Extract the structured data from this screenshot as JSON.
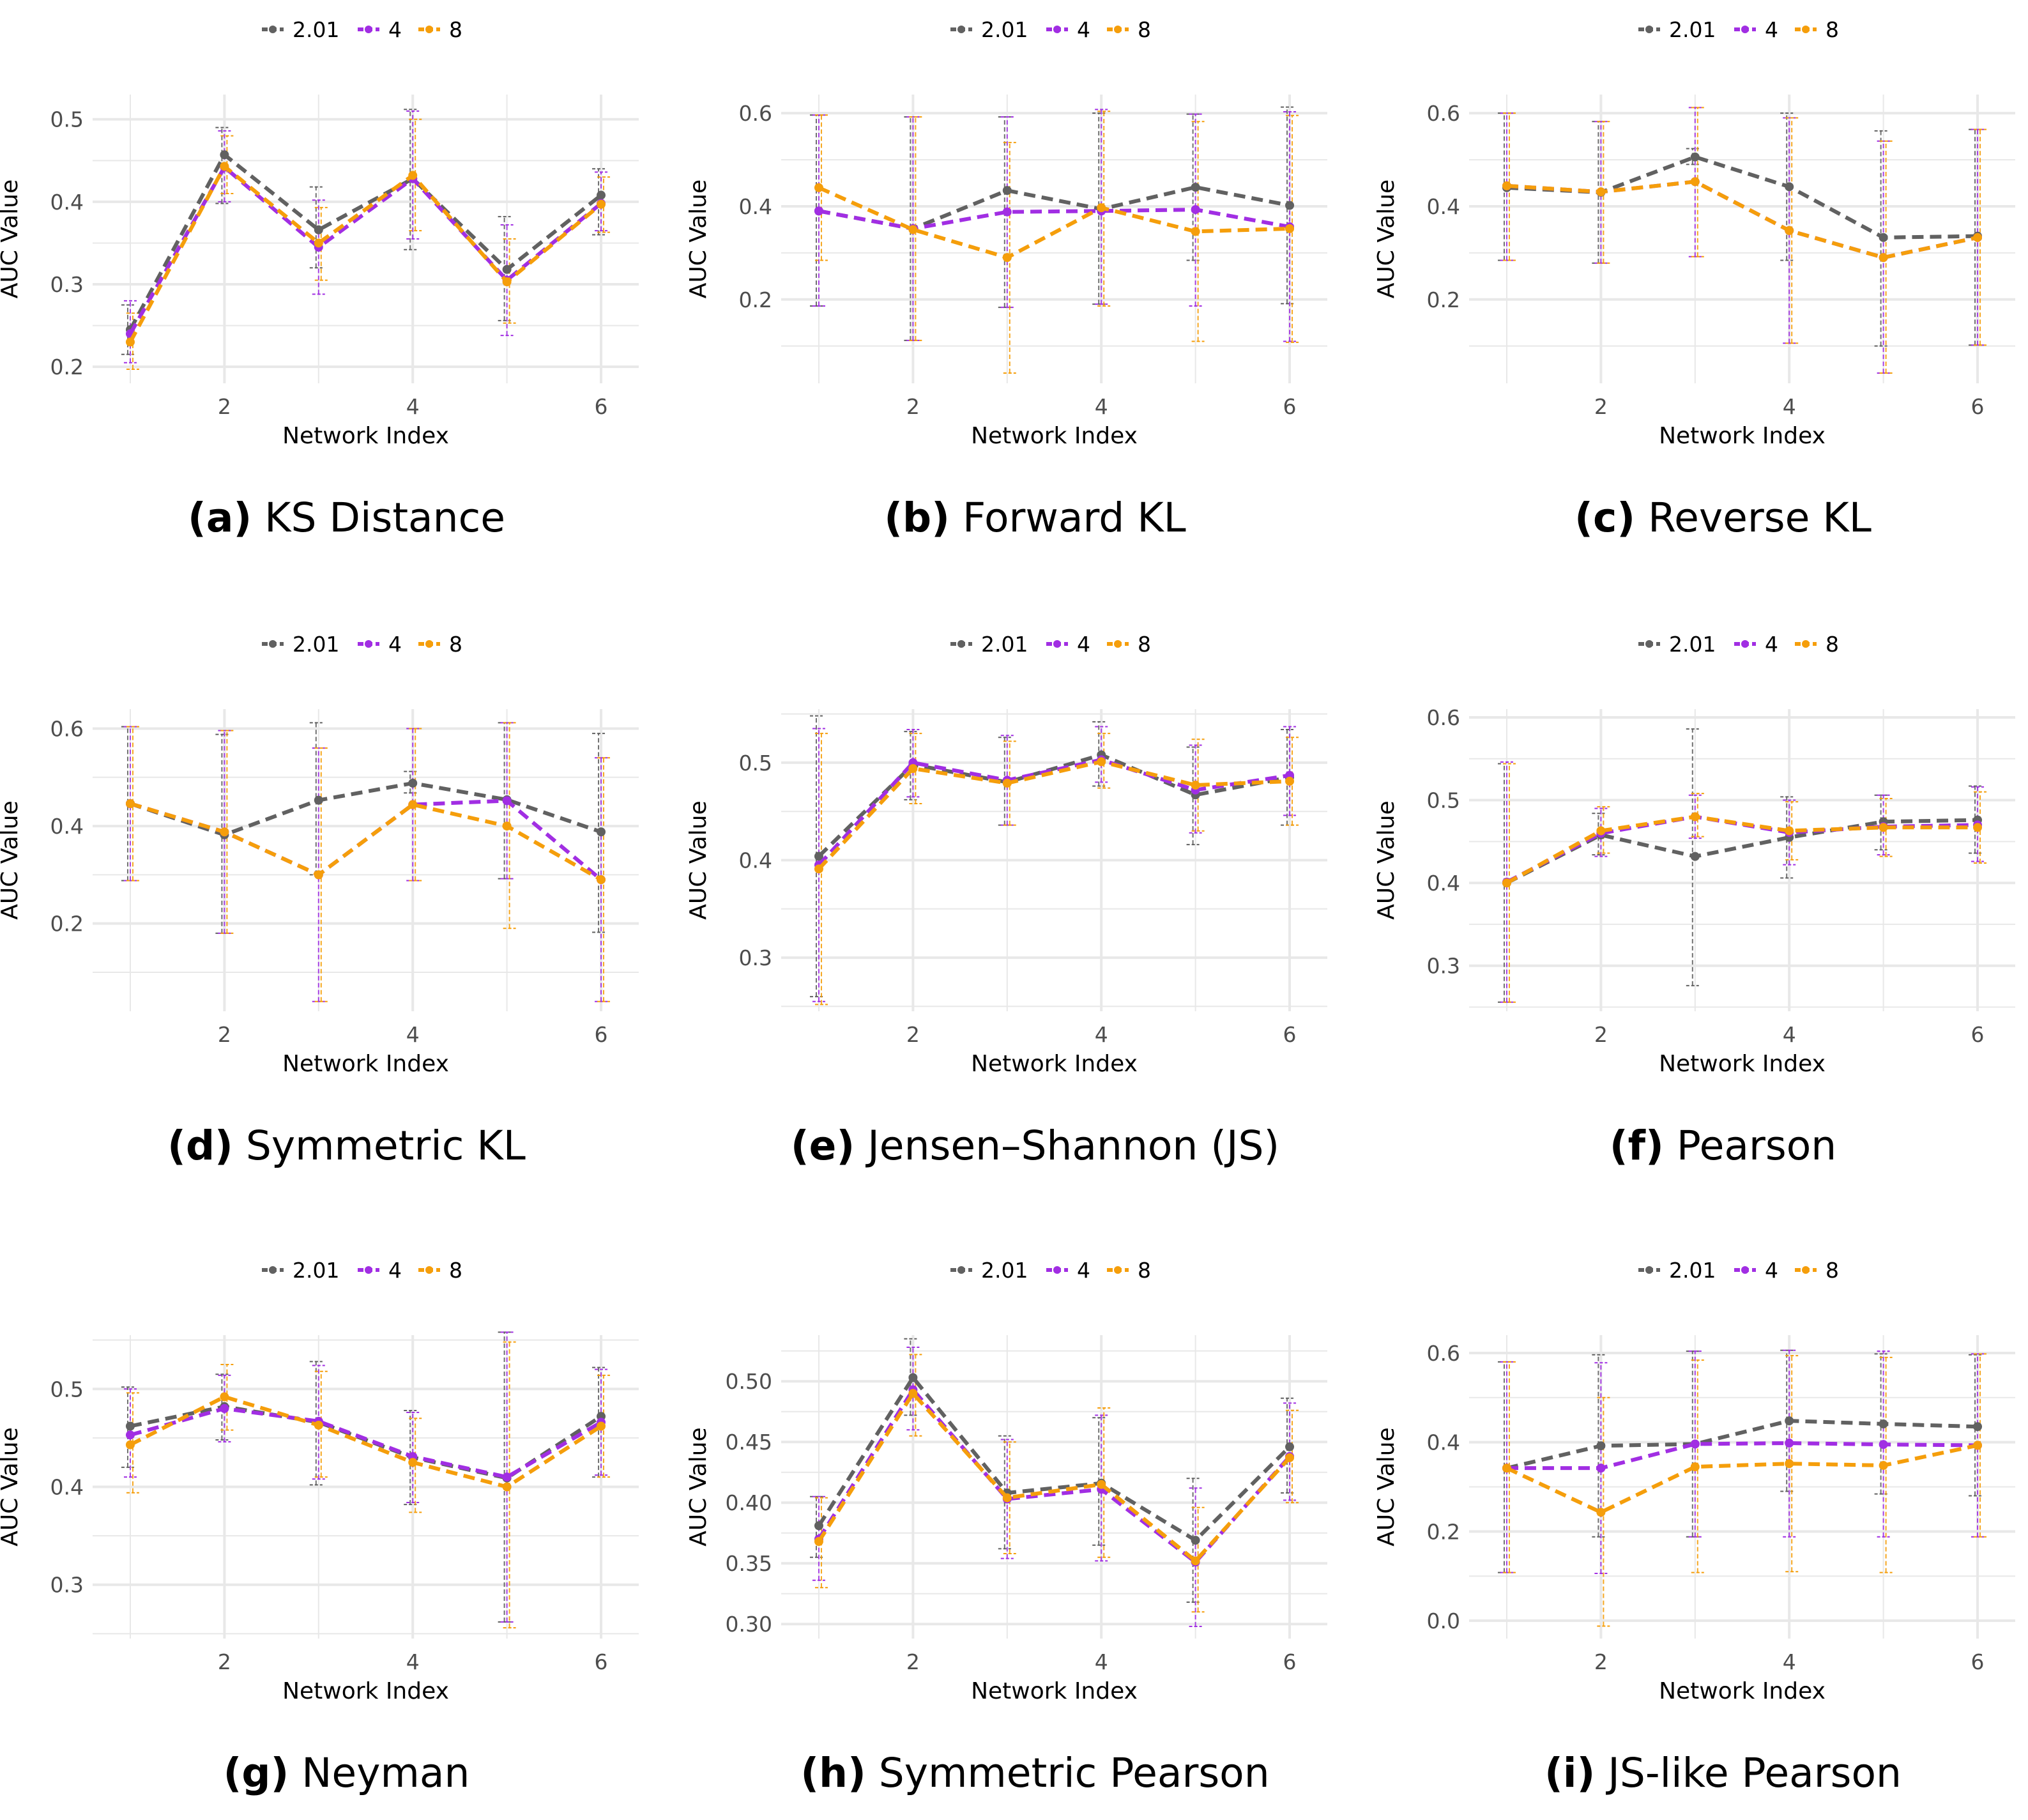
{
  "figure": {
    "legend_labels": [
      "2.01",
      "4",
      "8"
    ],
    "colors": {
      "2.01": "#616161",
      "4": "#a12ee3",
      "8": "#f59e0b"
    },
    "grid_color": "#e8e8e8",
    "axis_text_color": "#4d4d4d"
  },
  "chart_data": [
    {
      "id": "a",
      "type": "line",
      "letter": "(a)",
      "caption": "KS Distance",
      "xlabel": "Network Index",
      "ylabel": "AUC Value",
      "x": [
        1,
        2,
        3,
        4,
        5,
        6
      ],
      "xticks": [
        2,
        4,
        6
      ],
      "xticklabels": [
        "2",
        "4",
        "6"
      ],
      "ylim": [
        0.18,
        0.53
      ],
      "yticks": [
        0.2,
        0.3,
        0.4,
        0.5
      ],
      "yticklabels": [
        "0.2",
        "0.3",
        "0.4",
        "0.5"
      ],
      "legend": "top",
      "series": [
        {
          "name": "2.01",
          "values": [
            0.245,
            0.457,
            0.366,
            0.428,
            0.318,
            0.408
          ],
          "lower": [
            0.215,
            0.398,
            0.32,
            0.342,
            0.256,
            0.36
          ],
          "upper": [
            0.275,
            0.49,
            0.418,
            0.512,
            0.382,
            0.44
          ]
        },
        {
          "name": "4",
          "values": [
            0.24,
            0.442,
            0.345,
            0.428,
            0.305,
            0.398
          ],
          "lower": [
            0.205,
            0.4,
            0.288,
            0.355,
            0.238,
            0.365
          ],
          "upper": [
            0.28,
            0.486,
            0.402,
            0.51,
            0.372,
            0.436
          ]
        },
        {
          "name": "8",
          "values": [
            0.23,
            0.443,
            0.35,
            0.432,
            0.303,
            0.397
          ],
          "lower": [
            0.197,
            0.41,
            0.305,
            0.365,
            0.253,
            0.363
          ],
          "upper": [
            0.265,
            0.48,
            0.393,
            0.5,
            0.355,
            0.43
          ]
        }
      ]
    },
    {
      "id": "b",
      "type": "line",
      "letter": "(b)",
      "caption": "Forward KL",
      "xlabel": "Network Index",
      "ylabel": "AUC Value",
      "x": [
        1,
        2,
        3,
        4,
        5,
        6
      ],
      "xticks": [
        2,
        4,
        6
      ],
      "xticklabels": [
        "2",
        "4",
        "6"
      ],
      "ylim": [
        0.02,
        0.64
      ],
      "yticks": [
        0.2,
        0.4,
        0.6
      ],
      "yticklabels": [
        "0.2",
        "0.4",
        "0.6"
      ],
      "legend": "top",
      "series": [
        {
          "name": "2.01",
          "values": [
            0.39,
            0.352,
            0.434,
            0.394,
            0.441,
            0.402
          ],
          "lower": [
            0.186,
            0.112,
            0.183,
            0.19,
            0.284,
            0.191
          ],
          "upper": [
            0.596,
            0.592,
            0.592,
            0.6,
            0.598,
            0.613
          ]
        },
        {
          "name": "4",
          "values": [
            0.39,
            0.352,
            0.388,
            0.39,
            0.393,
            0.356
          ],
          "lower": [
            0.186,
            0.112,
            0.183,
            0.19,
            0.186,
            0.11
          ],
          "upper": [
            0.596,
            0.592,
            0.592,
            0.608,
            0.598,
            0.603
          ]
        },
        {
          "name": "8",
          "values": [
            0.44,
            0.35,
            0.29,
            0.397,
            0.346,
            0.352
          ],
          "lower": [
            0.284,
            0.112,
            0.042,
            0.186,
            0.11,
            0.108
          ],
          "upper": [
            0.596,
            0.592,
            0.537,
            0.604,
            0.582,
            0.595
          ]
        }
      ]
    },
    {
      "id": "c",
      "type": "line",
      "letter": "(c)",
      "caption": "Reverse KL",
      "xlabel": "Network Index",
      "ylabel": "AUC Value",
      "x": [
        1,
        2,
        3,
        4,
        5,
        6
      ],
      "xticks": [
        2,
        4,
        6
      ],
      "xticklabels": [
        "2",
        "4",
        "6"
      ],
      "ylim": [
        0.02,
        0.64
      ],
      "yticks": [
        0.2,
        0.4,
        0.6
      ],
      "yticklabels": [
        "0.2",
        "0.4",
        "0.6"
      ],
      "legend": "top",
      "series": [
        {
          "name": "2.01",
          "values": [
            0.44,
            0.43,
            0.506,
            0.442,
            0.333,
            0.336
          ],
          "lower": [
            0.284,
            0.278,
            0.49,
            0.284,
            0.1,
            0.102
          ],
          "upper": [
            0.6,
            0.582,
            0.524,
            0.6,
            0.562,
            0.565
          ]
        },
        {
          "name": "4",
          "values": [
            0.444,
            0.431,
            0.453,
            0.348,
            0.29,
            0.333
          ],
          "lower": [
            0.284,
            0.278,
            0.292,
            0.106,
            0.042,
            0.102
          ],
          "upper": [
            0.6,
            0.582,
            0.612,
            0.59,
            0.54,
            0.565
          ]
        },
        {
          "name": "8",
          "values": [
            0.444,
            0.431,
            0.453,
            0.348,
            0.29,
            0.333
          ],
          "lower": [
            0.284,
            0.278,
            0.292,
            0.106,
            0.042,
            0.102
          ],
          "upper": [
            0.6,
            0.582,
            0.612,
            0.59,
            0.54,
            0.565
          ]
        }
      ]
    },
    {
      "id": "d",
      "type": "line",
      "letter": "(d)",
      "caption": "Symmetric KL",
      "xlabel": "Network Index",
      "ylabel": "AUC Value",
      "x": [
        1,
        2,
        3,
        4,
        5,
        6
      ],
      "xticks": [
        2,
        4,
        6
      ],
      "xticklabels": [
        "2",
        "4",
        "6"
      ],
      "ylim": [
        0.02,
        0.64
      ],
      "yticks": [
        0.2,
        0.4,
        0.6
      ],
      "yticklabels": [
        "0.2",
        "0.4",
        "0.6"
      ],
      "legend": "top",
      "series": [
        {
          "name": "2.01",
          "values": [
            0.446,
            0.382,
            0.453,
            0.488,
            0.454,
            0.388
          ],
          "lower": [
            0.288,
            0.18,
            0.3,
            0.468,
            0.292,
            0.182
          ],
          "upper": [
            0.604,
            0.588,
            0.612,
            0.512,
            0.612,
            0.59
          ]
        },
        {
          "name": "4",
          "values": [
            0.446,
            0.388,
            0.3,
            0.444,
            0.452,
            0.29
          ],
          "lower": [
            0.288,
            0.18,
            0.04,
            0.288,
            0.292,
            0.04
          ],
          "upper": [
            0.604,
            0.596,
            0.56,
            0.6,
            0.612,
            0.54
          ]
        },
        {
          "name": "8",
          "values": [
            0.446,
            0.388,
            0.3,
            0.444,
            0.4,
            0.29
          ],
          "lower": [
            0.288,
            0.18,
            0.04,
            0.288,
            0.19,
            0.04
          ],
          "upper": [
            0.604,
            0.596,
            0.56,
            0.6,
            0.612,
            0.54
          ]
        }
      ]
    },
    {
      "id": "e",
      "type": "line",
      "letter": "(e)",
      "caption": "Jensen–Shannon (JS)",
      "xlabel": "Network Index",
      "ylabel": "AUC Value",
      "x": [
        1,
        2,
        3,
        4,
        5,
        6
      ],
      "xticks": [
        2,
        4,
        6
      ],
      "xticklabels": [
        "2",
        "4",
        "6"
      ],
      "ylim": [
        0.245,
        0.555
      ],
      "yticks": [
        0.3,
        0.4,
        0.5
      ],
      "yticklabels": [
        "0.3",
        "0.4",
        "0.5"
      ],
      "legend": "top",
      "series": [
        {
          "name": "2.01",
          "values": [
            0.404,
            0.498,
            0.48,
            0.508,
            0.467,
            0.485
          ],
          "lower": [
            0.26,
            0.462,
            0.436,
            0.476,
            0.416,
            0.436
          ],
          "upper": [
            0.548,
            0.532,
            0.526,
            0.542,
            0.516,
            0.534
          ]
        },
        {
          "name": "4",
          "values": [
            0.395,
            0.5,
            0.482,
            0.503,
            0.472,
            0.487
          ],
          "lower": [
            0.255,
            0.465,
            0.436,
            0.48,
            0.428,
            0.446
          ],
          "upper": [
            0.535,
            0.534,
            0.528,
            0.537,
            0.518,
            0.537
          ]
        },
        {
          "name": "8",
          "values": [
            0.391,
            0.494,
            0.479,
            0.501,
            0.477,
            0.481
          ],
          "lower": [
            0.252,
            0.458,
            0.436,
            0.474,
            0.43,
            0.436
          ],
          "upper": [
            0.53,
            0.53,
            0.522,
            0.53,
            0.524,
            0.526
          ]
        }
      ]
    },
    {
      "id": "f",
      "type": "line",
      "letter": "(f)",
      "caption": "Pearson",
      "xlabel": "Network Index",
      "ylabel": "AUC Value",
      "x": [
        1,
        2,
        3,
        4,
        5,
        6
      ],
      "xticks": [
        2,
        4,
        6
      ],
      "xticklabels": [
        "2",
        "4",
        "6"
      ],
      "ylim": [
        0.245,
        0.61
      ],
      "yticks": [
        0.3,
        0.4,
        0.5,
        0.6
      ],
      "yticklabels": [
        "0.3",
        "0.4",
        "0.5",
        "0.6"
      ],
      "legend": "top",
      "series": [
        {
          "name": "2.01",
          "values": [
            0.4,
            0.458,
            0.432,
            0.455,
            0.474,
            0.476
          ],
          "lower": [
            0.256,
            0.434,
            0.276,
            0.406,
            0.44,
            0.436
          ],
          "upper": [
            0.544,
            0.484,
            0.586,
            0.504,
            0.506,
            0.517
          ]
        },
        {
          "name": "4",
          "values": [
            0.401,
            0.46,
            0.48,
            0.461,
            0.468,
            0.47
          ],
          "lower": [
            0.256,
            0.432,
            0.454,
            0.422,
            0.434,
            0.426
          ],
          "upper": [
            0.546,
            0.49,
            0.506,
            0.5,
            0.506,
            0.516
          ]
        },
        {
          "name": "8",
          "values": [
            0.4,
            0.463,
            0.48,
            0.463,
            0.467,
            0.467
          ],
          "lower": [
            0.256,
            0.436,
            0.456,
            0.428,
            0.432,
            0.424
          ],
          "upper": [
            0.544,
            0.492,
            0.508,
            0.498,
            0.502,
            0.51
          ]
        }
      ]
    },
    {
      "id": "g",
      "type": "line",
      "letter": "(g)",
      "caption": "Neyman",
      "xlabel": "Network Index",
      "ylabel": "AUC Value",
      "x": [
        1,
        2,
        3,
        4,
        5,
        6
      ],
      "xticks": [
        2,
        4,
        6
      ],
      "xticklabels": [
        "2",
        "4",
        "6"
      ],
      "ylim": [
        0.245,
        0.555
      ],
      "yticks": [
        0.3,
        0.4,
        0.5
      ],
      "yticklabels": [
        "0.3",
        "0.4",
        "0.5"
      ],
      "legend": "top",
      "series": [
        {
          "name": "2.01",
          "values": [
            0.462,
            0.482,
            0.466,
            0.43,
            0.409,
            0.472
          ],
          "lower": [
            0.42,
            0.448,
            0.402,
            0.382,
            0.262,
            0.41
          ],
          "upper": [
            0.502,
            0.515,
            0.528,
            0.478,
            0.558,
            0.522
          ]
        },
        {
          "name": "4",
          "values": [
            0.453,
            0.48,
            0.467,
            0.431,
            0.41,
            0.466
          ],
          "lower": [
            0.41,
            0.446,
            0.408,
            0.384,
            0.262,
            0.412
          ],
          "upper": [
            0.5,
            0.514,
            0.524,
            0.476,
            0.558,
            0.52
          ]
        },
        {
          "name": "8",
          "values": [
            0.443,
            0.492,
            0.463,
            0.425,
            0.4,
            0.462
          ],
          "lower": [
            0.394,
            0.458,
            0.41,
            0.374,
            0.256,
            0.41
          ],
          "upper": [
            0.496,
            0.525,
            0.518,
            0.47,
            0.548,
            0.514
          ]
        }
      ]
    },
    {
      "id": "h",
      "type": "line",
      "letter": "(h)",
      "caption": "Symmetric Pearson",
      "xlabel": "Network Index",
      "ylabel": "AUC Value",
      "x": [
        1,
        2,
        3,
        4,
        5,
        6
      ],
      "xticks": [
        2,
        4,
        6
      ],
      "xticklabels": [
        "2",
        "4",
        "6"
      ],
      "ylim": [
        0.288,
        0.538
      ],
      "yticks": [
        0.3,
        0.35,
        0.4,
        0.45,
        0.5
      ],
      "yticklabels": [
        "0.30",
        "0.35",
        "0.40",
        "0.45",
        "0.50"
      ],
      "legend": "top",
      "series": [
        {
          "name": "2.01",
          "values": [
            0.381,
            0.503,
            0.408,
            0.416,
            0.369,
            0.446
          ],
          "lower": [
            0.355,
            0.472,
            0.362,
            0.365,
            0.318,
            0.408
          ],
          "upper": [
            0.405,
            0.535,
            0.455,
            0.47,
            0.42,
            0.486
          ]
        },
        {
          "name": "4",
          "values": [
            0.37,
            0.493,
            0.403,
            0.411,
            0.351,
            0.438
          ],
          "lower": [
            0.336,
            0.46,
            0.354,
            0.352,
            0.298,
            0.402
          ],
          "upper": [
            0.405,
            0.528,
            0.452,
            0.472,
            0.412,
            0.482
          ]
        },
        {
          "name": "8",
          "values": [
            0.368,
            0.49,
            0.404,
            0.415,
            0.352,
            0.437
          ],
          "lower": [
            0.33,
            0.455,
            0.358,
            0.355,
            0.31,
            0.4
          ],
          "upper": [
            0.404,
            0.522,
            0.45,
            0.478,
            0.396,
            0.476
          ]
        }
      ]
    },
    {
      "id": "i",
      "type": "line",
      "letter": "(i)",
      "caption": "JS-like Pearson",
      "xlabel": "Network Index",
      "ylabel": "AUC Value",
      "x": [
        1,
        2,
        3,
        4,
        5,
        6
      ],
      "xticks": [
        2,
        4,
        6
      ],
      "xticklabels": [
        "2",
        "4",
        "6"
      ],
      "ylim": [
        -0.04,
        0.64
      ],
      "yticks": [
        0.0,
        0.2,
        0.4,
        0.6
      ],
      "yticklabels": [
        "0.0",
        "0.2",
        "0.4",
        "0.6"
      ],
      "legend": "top",
      "series": [
        {
          "name": "2.01",
          "values": [
            0.342,
            0.392,
            0.396,
            0.448,
            0.441,
            0.435
          ],
          "lower": [
            0.108,
            0.188,
            0.188,
            0.29,
            0.284,
            0.28
          ],
          "upper": [
            0.58,
            0.596,
            0.604,
            0.606,
            0.598,
            0.596
          ]
        },
        {
          "name": "4",
          "values": [
            0.342,
            0.342,
            0.396,
            0.398,
            0.395,
            0.393
          ],
          "lower": [
            0.108,
            0.106,
            0.188,
            0.188,
            0.188,
            0.188
          ],
          "upper": [
            0.58,
            0.578,
            0.604,
            0.606,
            0.604,
            0.598
          ]
        },
        {
          "name": "8",
          "values": [
            0.342,
            0.243,
            0.345,
            0.352,
            0.348,
            0.393
          ],
          "lower": [
            0.108,
            -0.012,
            0.108,
            0.11,
            0.108,
            0.188
          ],
          "upper": [
            0.58,
            0.5,
            0.584,
            0.594,
            0.59,
            0.598
          ]
        }
      ]
    }
  ]
}
